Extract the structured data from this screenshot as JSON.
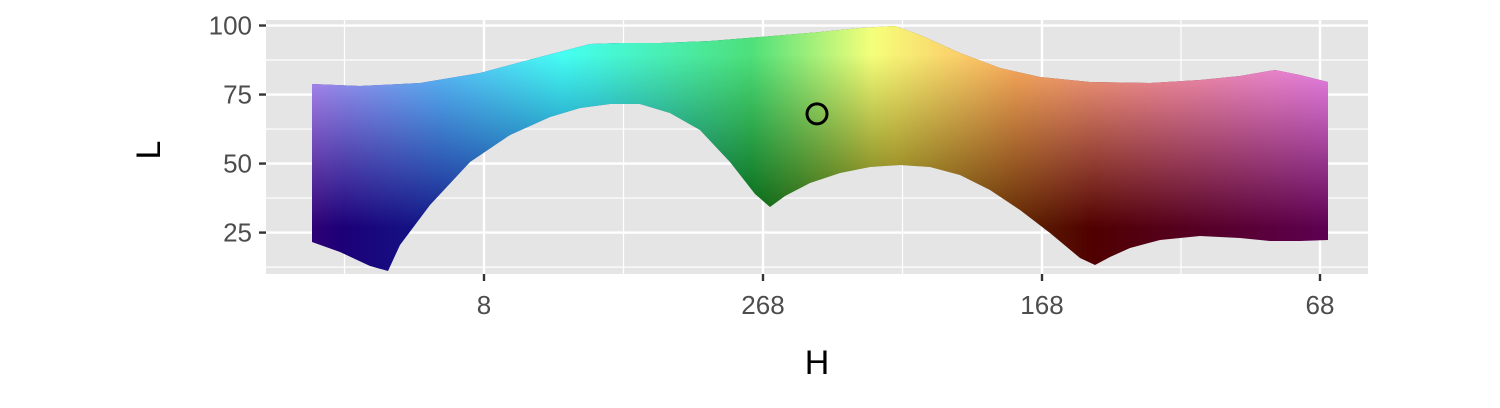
{
  "chart_data": {
    "type": "area",
    "xlabel": "H",
    "ylabel": "L",
    "ylim": [
      10,
      102
    ],
    "x_ticks": [
      "8",
      "268",
      "168",
      "68"
    ],
    "y_ticks": [
      100,
      75,
      50,
      25
    ],
    "grid": true,
    "panel_background": "#e5e5e5",
    "band": {
      "hue_stops": [
        {
          "pos": 0.0,
          "color": "#d98cff"
        },
        {
          "pos": 0.16,
          "color": "#5fc6ff"
        },
        {
          "pos": 0.27,
          "color": "#45fff2"
        },
        {
          "pos": 0.44,
          "color": "#4de07a"
        },
        {
          "pos": 0.55,
          "color": "#f5ff7a"
        },
        {
          "pos": 0.68,
          "color": "#ffb060"
        },
        {
          "pos": 0.8,
          "color": "#ff9aa0"
        },
        {
          "pos": 1.0,
          "color": "#ee88ff"
        }
      ],
      "dark_stops": [
        {
          "pos": 0.0,
          "color": "#4a0070"
        },
        {
          "pos": 0.07,
          "color": "#1c0078"
        },
        {
          "pos": 0.3,
          "color": "#0040a0"
        },
        {
          "pos": 0.44,
          "color": "#005c10"
        },
        {
          "pos": 0.57,
          "color": "#706000"
        },
        {
          "pos": 0.75,
          "color": "#500000"
        },
        {
          "pos": 1.0,
          "color": "#600060"
        }
      ]
    },
    "highlight_point": {
      "position_fraction": 0.48,
      "L": 68
    }
  }
}
